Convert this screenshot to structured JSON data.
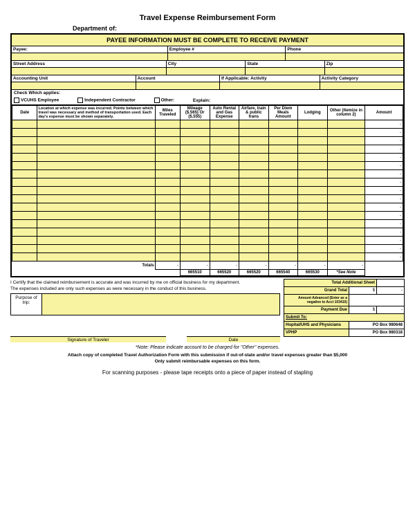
{
  "title": "Travel Expense Reimbursement Form",
  "dept_label": "Department of:",
  "banner": "PAYEE INFORMATION MUST BE COMPLETE TO RECEIVE PAYMENT",
  "fields": {
    "payee": "Payee:",
    "employee_num": "Employee #",
    "phone": "Phone",
    "street": "Street Address",
    "city": "City",
    "state": "State",
    "zip": "Zip",
    "acct_unit": "Accounting Unit",
    "account": "Account",
    "if_applicable": "If Applicable: Activity",
    "activity_cat": "Activity Category"
  },
  "check_label": "Check Which applies:",
  "checks": {
    "vcuhs": "VCUHS Employee",
    "contractor": "Independent Contractor",
    "other": "Other:",
    "explain": "Explain:"
  },
  "columns": {
    "date": "Date",
    "location": "Location at which expense was incurred. Points between which travel was necessary and method of transportation used. Each day's expense must be shown separately.",
    "miles": "Miles Traveled",
    "mileage": "Mileage ($.565) Or ($.555)",
    "auto": "Auto Rental and Gas Expense",
    "airfare": "Airfare, train & public trans",
    "perdiem": "Per Diem Meals Amount",
    "lodging": "Lodging",
    "other": "Other (Itemize in column 2)",
    "amount": "Amount"
  },
  "totals_label": "Totals",
  "totals": {
    "c1": "-",
    "c2": "-",
    "c3": "-",
    "c4": "-",
    "c5": "-",
    "c6": "-",
    "c7": "-"
  },
  "accounts": {
    "a1": "665510",
    "a2": "665520",
    "a3": "665520",
    "a4": "665540",
    "a5": "665530",
    "a6": "*See Note"
  },
  "certify": "I Certify that the claimed reimbursement is accurate and was incurred by me on official business for my department.",
  "expenses_text": "The expenses included are only such expenses as were necessary in the conduct of this business.",
  "purpose_label": "Purpose of trip:",
  "sig_traveler": "Signature of Traveler",
  "sig_date": "Date",
  "summary": {
    "total_additional": "Total Additional Sheet",
    "grand_total": "Grand Total",
    "amount_advanced": "Amount Advanced (Enter as a negative to Acct 103410)",
    "payment_due": "Payment Due",
    "dollar": "$",
    "dash": "-",
    "submit_to": "Submit To:",
    "hospital": "Hopital/UHS and Physicians",
    "po1": "PO Box 980648",
    "vphp": "VPHP",
    "po2": "PO Box 980318"
  },
  "note": "*Note: Please indicate account to be charged for \"Other\" expenses.",
  "attach": "Attach copy of completed Travel Authorization Form with this submission if out-of-state and/or travel expenses greater than $5,000",
  "only_submit": "Only submit reimbursable expenses on this form.",
  "scan": "For scanning purposes - please tape receipts onto a piece of paper instead of stapling",
  "colors": {
    "yellow": "#f7f3a0",
    "border": "#000000",
    "bg": "#ffffff"
  },
  "num_rows": 17,
  "col_widths_pct": [
    6,
    28,
    6,
    7,
    7,
    7,
    7,
    7,
    9,
    9
  ]
}
